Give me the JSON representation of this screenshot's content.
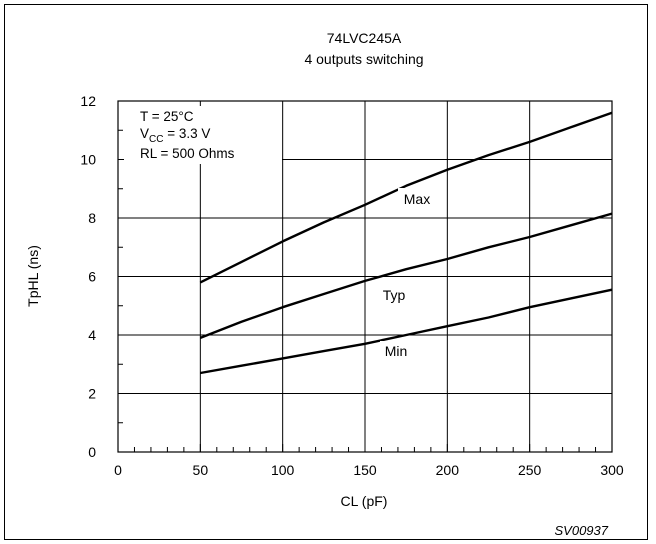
{
  "chart_data": {
    "type": "line",
    "title": "74LVC245A",
    "subtitle": "4 outputs switching",
    "xlabel": "CL (pF)",
    "ylabel": "TpHL (ns)",
    "xlim": [
      0,
      300
    ],
    "ylim": [
      0,
      12
    ],
    "xticks": [
      0,
      50,
      100,
      150,
      200,
      250,
      300
    ],
    "yticks": [
      0,
      2,
      4,
      6,
      8,
      10,
      12
    ],
    "grid": true,
    "conditions": {
      "temp": "T = 25°C",
      "vcc_prefix": "V",
      "vcc_sub": "CC",
      "vcc_rest": " = 3.3 V",
      "rl": "RL = 500 Ohms"
    },
    "series": [
      {
        "name": "Max",
        "x": [
          50,
          75,
          100,
          125,
          150,
          175,
          200,
          225,
          250,
          275,
          300
        ],
        "y": [
          5.8,
          6.5,
          7.2,
          7.85,
          8.45,
          9.1,
          9.65,
          10.15,
          10.6,
          11.1,
          11.6
        ]
      },
      {
        "name": "Typ",
        "x": [
          50,
          75,
          100,
          125,
          150,
          175,
          200,
          225,
          250,
          275,
          300
        ],
        "y": [
          3.9,
          4.45,
          4.95,
          5.4,
          5.85,
          6.25,
          6.6,
          7.0,
          7.35,
          7.75,
          8.15
        ]
      },
      {
        "name": "Min",
        "x": [
          50,
          75,
          100,
          125,
          150,
          175,
          200,
          225,
          250,
          275,
          300
        ],
        "y": [
          2.7,
          2.95,
          3.2,
          3.45,
          3.7,
          4.0,
          4.3,
          4.6,
          4.95,
          5.25,
          5.55
        ]
      }
    ],
    "code": "SV00937"
  }
}
